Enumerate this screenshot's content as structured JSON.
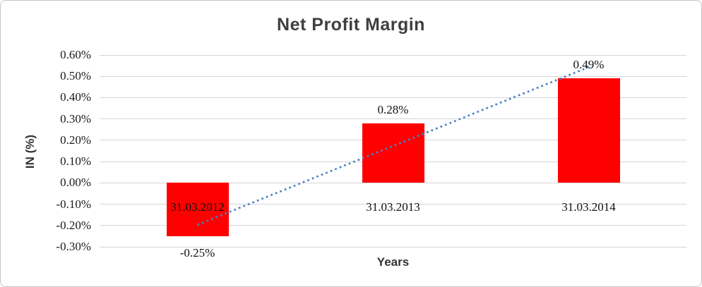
{
  "chart_data": {
    "type": "bar",
    "title": "Net Profit Margin",
    "xlabel": "Years",
    "ylabel": "IN (%)",
    "categories": [
      "31.03.2012",
      "31.03.2013",
      "31.03.2014"
    ],
    "values": [
      -0.25,
      0.28,
      0.49
    ],
    "data_labels": [
      "-0.25%",
      "0.28%",
      "0.49%"
    ],
    "yticks": [
      {
        "value": 0.6,
        "label": "0.60%"
      },
      {
        "value": 0.5,
        "label": "0.50%"
      },
      {
        "value": 0.4,
        "label": "0.40%"
      },
      {
        "value": 0.3,
        "label": "0.30%"
      },
      {
        "value": 0.2,
        "label": "0.20%"
      },
      {
        "value": 0.1,
        "label": "0.10%"
      },
      {
        "value": 0.0,
        "label": "0.00%"
      },
      {
        "value": -0.1,
        "label": "-0.10%"
      },
      {
        "value": -0.2,
        "label": "-0.20%"
      },
      {
        "value": -0.3,
        "label": "-0.30%"
      }
    ],
    "ylim": [
      -0.3,
      0.6
    ],
    "grid": true,
    "legend": "none",
    "bar_color": "#ff0000",
    "gridline_color": "#d6d6d6",
    "trendline": {
      "type": "linear",
      "style": "dotted",
      "color": "#4a80c4",
      "start_value": -0.197,
      "end_value": 0.543
    }
  }
}
